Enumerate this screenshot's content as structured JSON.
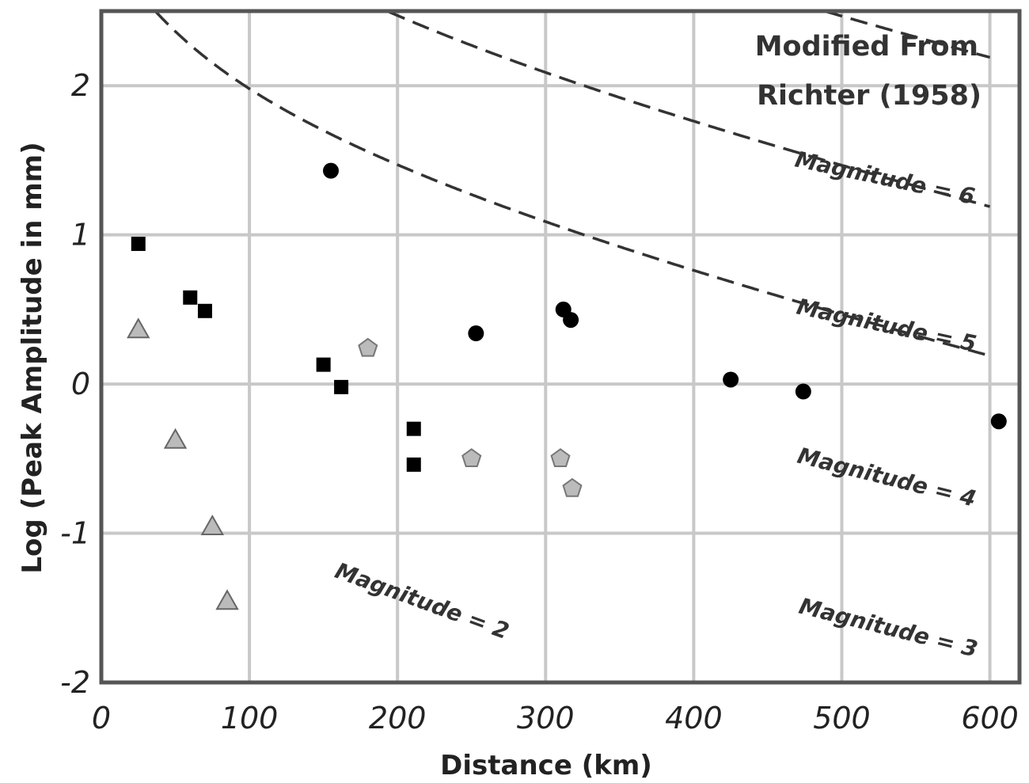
{
  "chart_data": {
    "type": "scatter",
    "xlabel": "Distance (km)",
    "ylabel": "Log (Peak Amplitude in mm)",
    "xlim": [
      0,
      620
    ],
    "ylim": [
      -2,
      2.5
    ],
    "xticks": [
      0,
      100,
      200,
      300,
      400,
      500,
      600
    ],
    "yticks": [
      -2,
      -1,
      0,
      1,
      2
    ],
    "xtick_labels": [
      "0",
      "100",
      "200",
      "300",
      "400",
      "500",
      "600"
    ],
    "ytick_labels": [
      "-2",
      "-1",
      "0",
      "1",
      "2"
    ],
    "grid": true,
    "legend": "none",
    "annotation": [
      "Modified From",
      "Richter (1958)"
    ],
    "curves": [
      {
        "label": "Magnitude = 2",
        "magnitude": 2
      },
      {
        "label": "Magnitude = 3",
        "magnitude": 3
      },
      {
        "label": "Magnitude = 4",
        "magnitude": 4
      },
      {
        "label": "Magnitude = 5",
        "magnitude": 5
      },
      {
        "label": "Magnitude = 6",
        "magnitude": 6
      }
    ],
    "series": [
      {
        "marker": "circle",
        "color": "#000000",
        "points": [
          [
            155,
            1.43
          ],
          [
            253,
            0.34
          ],
          [
            312,
            0.5
          ],
          [
            317,
            0.43
          ],
          [
            425,
            0.03
          ],
          [
            474,
            -0.05
          ],
          [
            606,
            -0.25
          ]
        ]
      },
      {
        "marker": "square",
        "color": "#000000",
        "points": [
          [
            25,
            0.94
          ],
          [
            60,
            0.58
          ],
          [
            70,
            0.49
          ],
          [
            150,
            0.13
          ],
          [
            162,
            -0.02
          ],
          [
            211,
            -0.3
          ],
          [
            211,
            -0.54
          ]
        ]
      },
      {
        "marker": "pentagon",
        "color": "#bbbbbb",
        "points": [
          [
            180,
            0.24
          ],
          [
            250,
            -0.5
          ],
          [
            310,
            -0.5
          ],
          [
            318,
            -0.7
          ]
        ]
      },
      {
        "marker": "triangle",
        "color": "#bbbbbb",
        "points": [
          [
            25,
            0.36
          ],
          [
            50,
            -0.38
          ],
          [
            75,
            -0.96
          ],
          [
            85,
            -1.46
          ]
        ]
      }
    ]
  }
}
